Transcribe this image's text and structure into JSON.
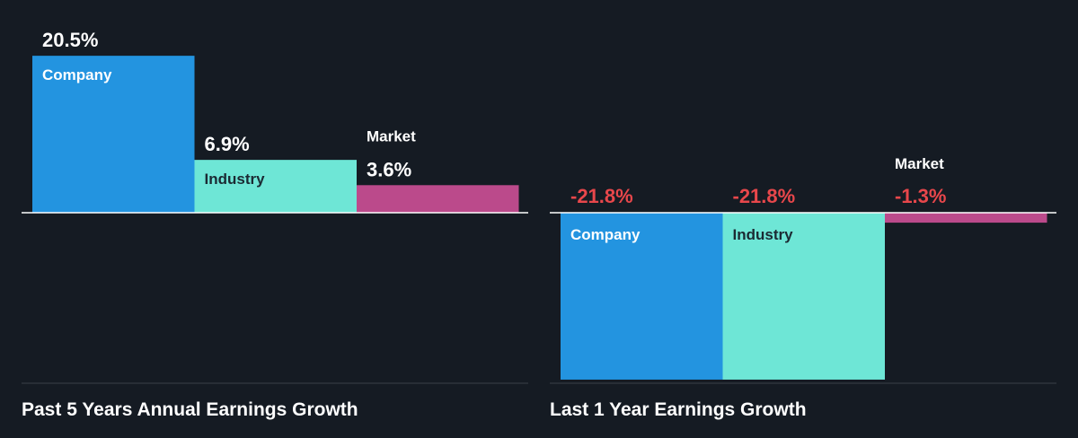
{
  "colors": {
    "background": "#151b23",
    "company": "#2394e0",
    "industry": "#6ee6d6",
    "market": "#bb4a8b",
    "positive_label": "#ffffff",
    "negative_label": "#e8474b",
    "baseline": "#ffffff",
    "divider": "#3b4048"
  },
  "chart_data": [
    {
      "type": "bar",
      "title": "Past 5 Years Annual Earnings Growth",
      "categories": [
        "Company",
        "Industry",
        "Market"
      ],
      "values": [
        20.5,
        6.9,
        3.6
      ],
      "value_labels": [
        "20.5%",
        "6.9%",
        "3.6%"
      ],
      "unit": "%",
      "bar_colors": [
        "#2394e0",
        "#6ee6d6",
        "#bb4a8b"
      ]
    },
    {
      "type": "bar",
      "title": "Last 1 Year Earnings Growth",
      "categories": [
        "Company",
        "Industry",
        "Market"
      ],
      "values": [
        -21.8,
        -21.8,
        -1.3
      ],
      "value_labels": [
        "-21.8%",
        "-21.8%",
        "-1.3%"
      ],
      "unit": "%",
      "bar_colors": [
        "#2394e0",
        "#6ee6d6",
        "#bb4a8b"
      ]
    }
  ]
}
